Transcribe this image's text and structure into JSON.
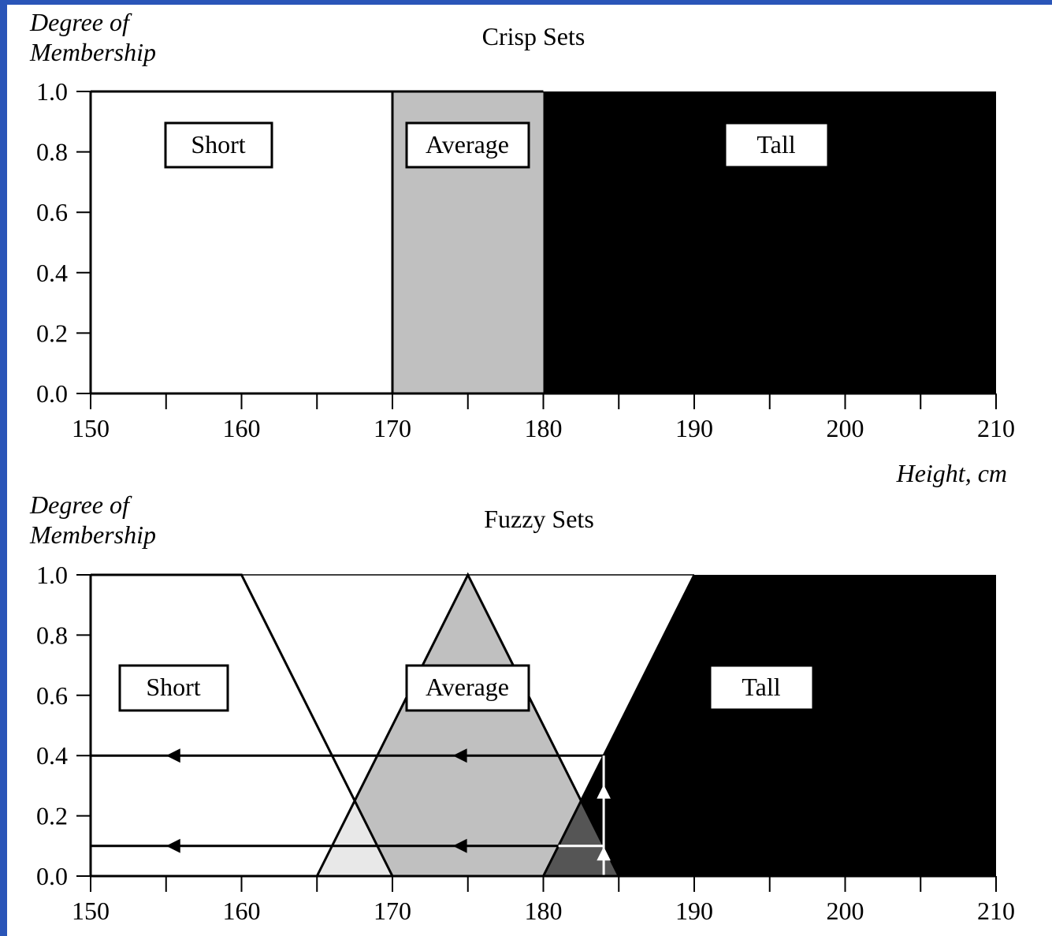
{
  "chart_data": [
    {
      "type": "area",
      "title": "Crisp Sets",
      "ylabel": "Degree of Membership",
      "xlabel": "Height, cm",
      "xlim": [
        150,
        210
      ],
      "ylim": [
        0,
        1
      ],
      "x_ticks": [
        "150",
        "160",
        "170",
        "180",
        "190",
        "200",
        "210"
      ],
      "y_ticks": [
        "0.0",
        "0.2",
        "0.4",
        "0.6",
        "0.8",
        "1.0"
      ],
      "x_tick_values": [
        150,
        160,
        170,
        180,
        190,
        200,
        210
      ],
      "y_tick_values": [
        0,
        0.2,
        0.4,
        0.6,
        0.8,
        1
      ],
      "series": [
        {
          "name": "Short",
          "fill": "#ffffff",
          "x": [
            150,
            150,
            170,
            170
          ],
          "y": [
            0,
            1,
            1,
            0
          ]
        },
        {
          "name": "Average",
          "fill": "#c0c0c0",
          "x": [
            170,
            170,
            180,
            180
          ],
          "y": [
            0,
            1,
            1,
            0
          ]
        },
        {
          "name": "Tall",
          "fill": "#000000",
          "x": [
            180,
            180,
            210,
            210
          ],
          "y": [
            0,
            1,
            1,
            0
          ]
        }
      ]
    },
    {
      "type": "area",
      "title": "Fuzzy Sets",
      "ylabel": "Degree of Membership",
      "xlabel": "",
      "xlim": [
        150,
        210
      ],
      "ylim": [
        0,
        1
      ],
      "x_ticks": [
        "150",
        "160",
        "170",
        "180",
        "190",
        "200",
        "210"
      ],
      "y_ticks": [
        "0.0",
        "0.2",
        "0.4",
        "0.6",
        "0.8",
        "1.0"
      ],
      "x_tick_values": [
        150,
        160,
        170,
        180,
        190,
        200,
        210
      ],
      "y_tick_values": [
        0,
        0.2,
        0.4,
        0.6,
        0.8,
        1
      ],
      "series": [
        {
          "name": "Short",
          "x": [
            150,
            160,
            170
          ],
          "y": [
            1,
            1,
            0
          ]
        },
        {
          "name": "Average",
          "x": [
            165,
            175,
            185
          ],
          "y": [
            0,
            1,
            0
          ]
        },
        {
          "name": "Tall",
          "x": [
            180,
            190,
            210
          ],
          "y": [
            0,
            1,
            1
          ]
        }
      ],
      "fills": {
        "tall": "#000000",
        "average": "#c0c0c0",
        "short_average_overlap": "#e8e8e8",
        "average_tall_overlap": "#555555"
      },
      "annotations": {
        "input_height": 184,
        "membership_levels": [
          0.4,
          0.1
        ]
      }
    }
  ]
}
